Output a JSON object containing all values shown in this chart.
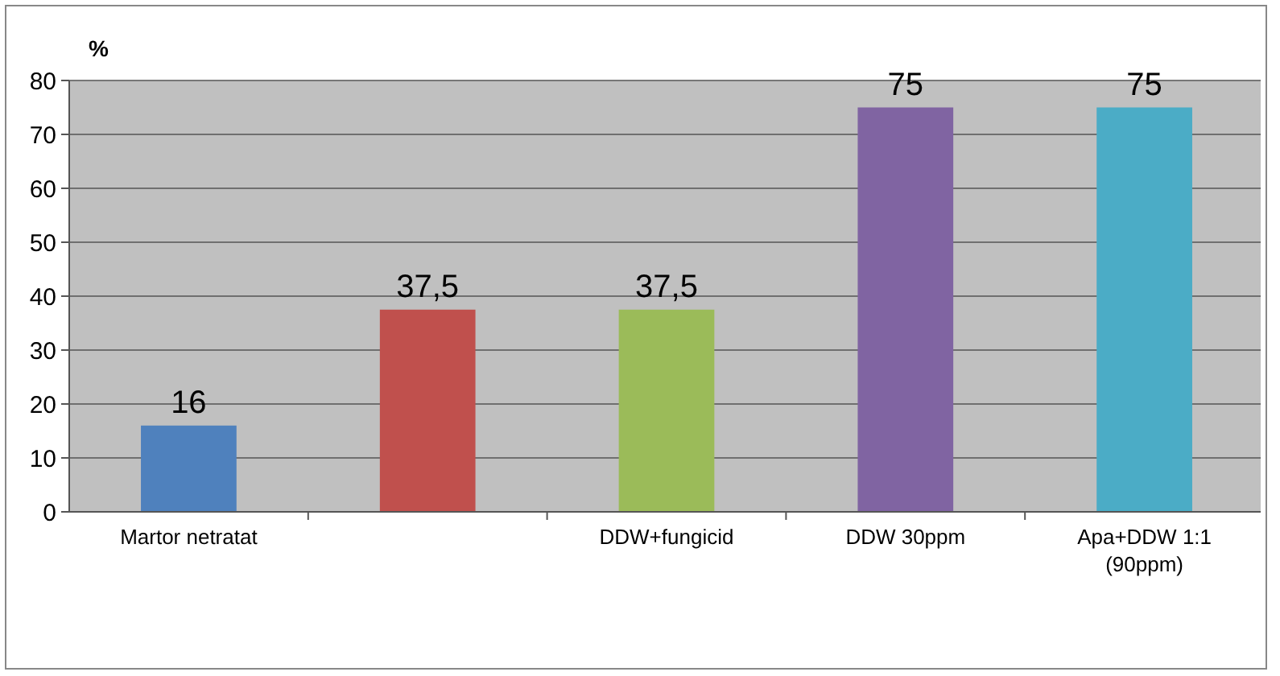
{
  "chart_data": {
    "type": "bar",
    "ylabel": "%",
    "categories": [
      "Martor netratat",
      null,
      "DDW+fungicid",
      "DDW 30ppm",
      "Apa+DDW 1:1 (90ppm)"
    ],
    "values": [
      16,
      37.5,
      37.5,
      75,
      75
    ],
    "colors": [
      "#4f81bd",
      "#c0504d",
      "#9bbb59",
      "#8064a2",
      "#4bacc6"
    ],
    "value_labels": [
      "16",
      "37,5",
      "37,5",
      "75",
      "75"
    ],
    "ylim": [
      0,
      80
    ],
    "yticks": [
      0,
      10,
      20,
      30,
      40,
      50,
      60,
      70,
      80
    ],
    "grid": "y"
  }
}
